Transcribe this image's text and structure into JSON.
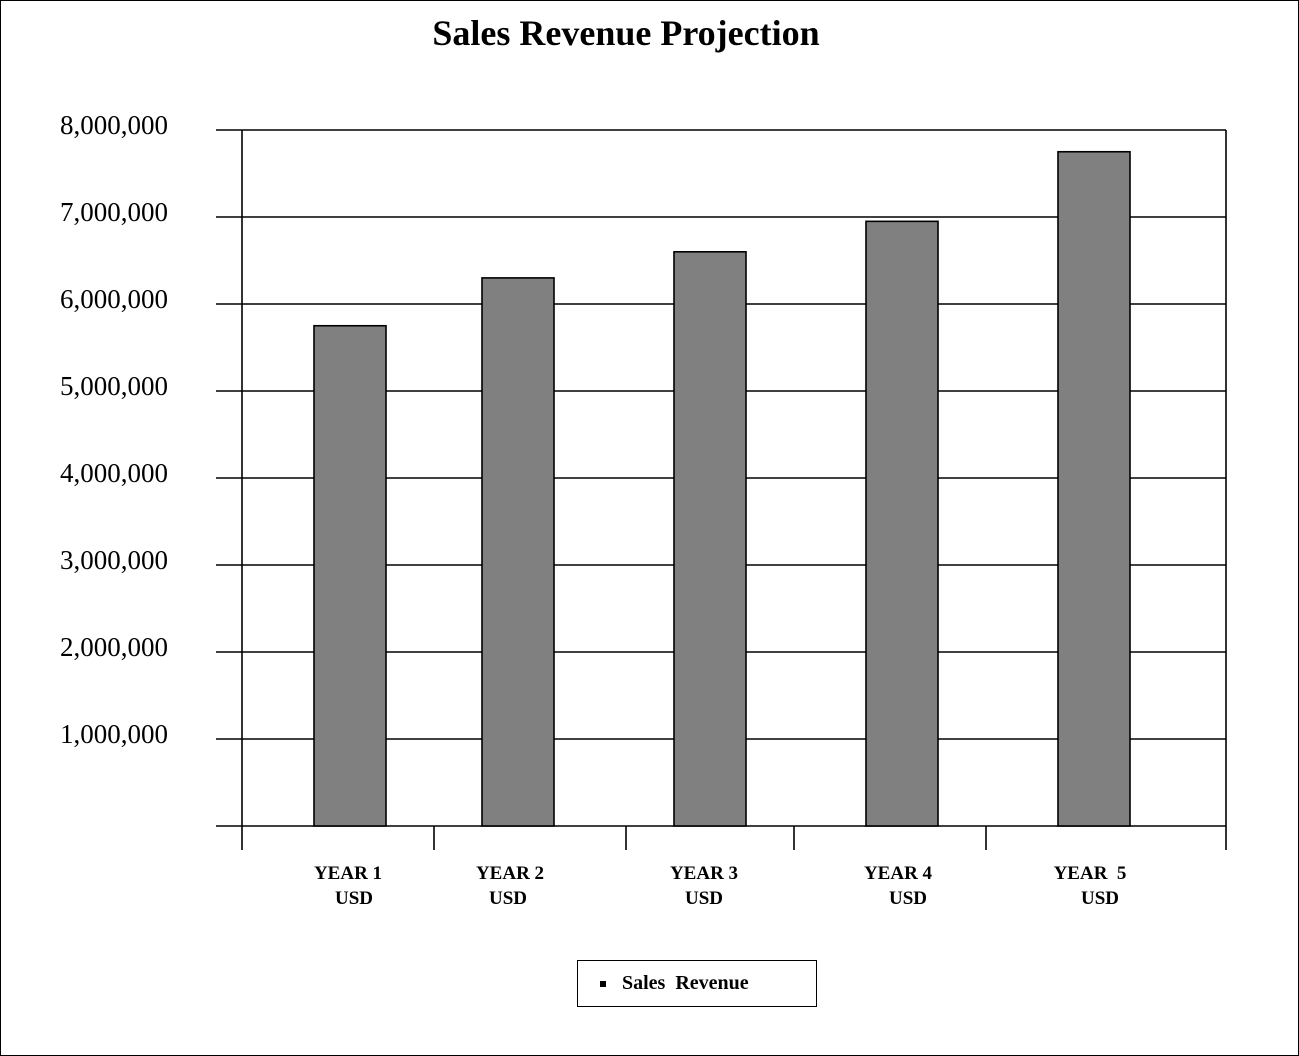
{
  "colors": {
    "bar_fill": "#808080",
    "bar_stroke": "#000000",
    "gridline": "#000000",
    "background": "#ffffff"
  },
  "chart_data": {
    "type": "bar",
    "title": "Sales Revenue Projection",
    "categories": [
      [
        "YEAR 1",
        "USD"
      ],
      [
        "YEAR 2",
        "USD"
      ],
      [
        "YEAR 3",
        "USD"
      ],
      [
        "YEAR 4",
        "USD"
      ],
      [
        "YEAR  5",
        "USD"
      ]
    ],
    "series": [
      {
        "name": "Sales  Revenue",
        "values": [
          5750000,
          6300000,
          6600000,
          6950000,
          7750000
        ]
      }
    ],
    "y_ticks": [
      "1,000,000",
      "2,000,000",
      "3,000,000",
      "4,000,000",
      "5,000,000",
      "6,000,000",
      "7,000,000",
      "8,000,000"
    ],
    "ylim": [
      0,
      8000000
    ],
    "xlabel": "",
    "ylabel": "",
    "grid": true,
    "legend": "bottom-center"
  }
}
